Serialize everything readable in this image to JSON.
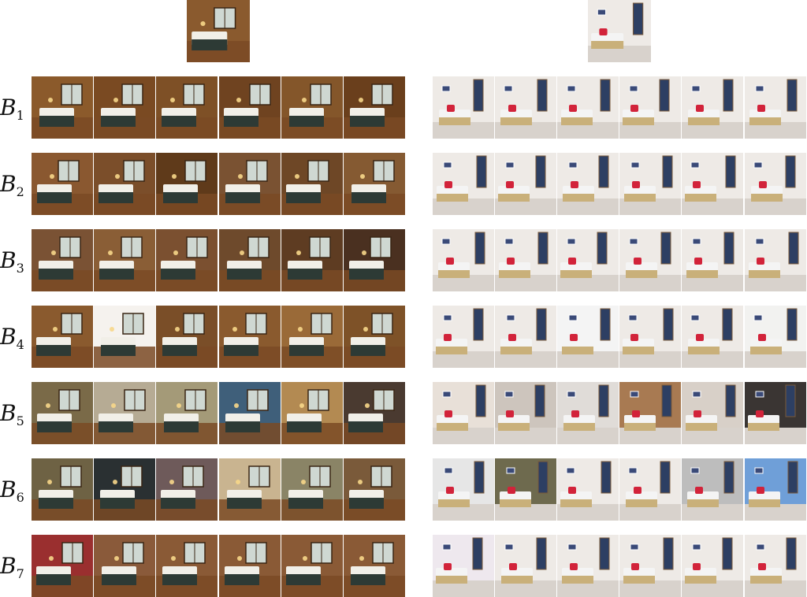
{
  "figure": {
    "row_labels": [
      {
        "base": "B",
        "sub": "1"
      },
      {
        "base": "B",
        "sub": "2"
      },
      {
        "base": "B",
        "sub": "3"
      },
      {
        "base": "B",
        "sub": "4"
      },
      {
        "base": "B",
        "sub": "5"
      },
      {
        "base": "B",
        "sub": "6"
      },
      {
        "base": "B",
        "sub": "7"
      }
    ],
    "panels": [
      {
        "name": "left-panel",
        "theme": "wooden-bedroom",
        "palette": {
          "wall": "#8a5a2e",
          "floor": "#7a4a24",
          "window": "#cfd8d2",
          "bed": "#f1efe8",
          "blanket": "#2d3a35"
        }
      },
      {
        "name": "right-panel",
        "theme": "white-bedroom",
        "palette": {
          "wall": "#eeeae6",
          "floor": "#d8d2cc",
          "window": "#2d3f63",
          "bed": "#f4f4f4",
          "blanket": "#c9b07a",
          "pillow": "#d2233a"
        }
      }
    ],
    "row_tints": {
      "left": [
        [
          "#8b5a2b",
          "#7a4a22",
          "#7e5026",
          "#6f4320",
          "#84562a",
          "#6a3f1c"
        ],
        [
          "#8a5830",
          "#7b4e2a",
          "#5f3a1a",
          "#7a5232",
          "#6e4726",
          "#855a32"
        ],
        [
          "#7a5234",
          "#8a5e36",
          "#7b5030",
          "#6e4a2c",
          "#5e3c22",
          "#4a3020"
        ],
        [
          "#8a5a2e",
          "#f5f2ee",
          "#7a4e28",
          "#8a5a2e",
          "#9a6a38",
          "#7e5228"
        ],
        [
          "#7a6a48",
          "#b6ab94",
          "#a49a78",
          "#3f5f7a",
          "#b38a52",
          "#4a3a30"
        ],
        [
          "#6e6244",
          "#2a3032",
          "#6e5a5a",
          "#c9b490",
          "#8a8466",
          "#7a5a3a"
        ],
        [
          "#9a2f2f",
          "#8a5a3a",
          "#8a5a36",
          "#8a5a36",
          "#8a5a36",
          "#8a5a36"
        ]
      ],
      "right": [
        [
          "#eeeae6",
          "#eeeae6",
          "#eeeae6",
          "#eeeae6",
          "#eeeae6",
          "#eeeae6"
        ],
        [
          "#eeeae6",
          "#eeeae6",
          "#eeeae6",
          "#eeeae6",
          "#eeeae6",
          "#eeeae6"
        ],
        [
          "#eeeae6",
          "#eeeae6",
          "#eeeae6",
          "#eeeae6",
          "#eeeae6",
          "#eeeae6"
        ],
        [
          "#eeeae6",
          "#eeeae6",
          "#f4f4f4",
          "#eeeae6",
          "#eeeae6",
          "#f2f2f0"
        ],
        [
          "#e8e0d8",
          "#cdc5bd",
          "#e0dcd8",
          "#a87a52",
          "#d8d0c8",
          "#3a3533"
        ],
        [
          "#e6e6e6",
          "#6e6a4e",
          "#eeeae6",
          "#eeeae6",
          "#bdbdbd",
          "#6f9fd8"
        ],
        [
          "#eee8ee",
          "#eeeae6",
          "#eeeae6",
          "#eeeae6",
          "#eeeae6",
          "#eeeae6"
        ]
      ]
    }
  }
}
